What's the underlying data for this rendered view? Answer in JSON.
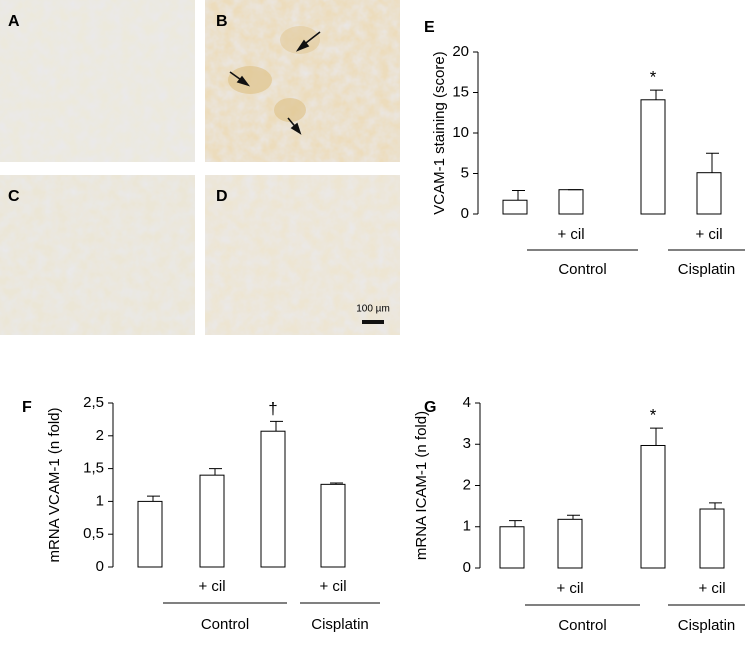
{
  "panels": [
    {
      "letter": "A"
    },
    {
      "letter": "B"
    },
    {
      "letter": "C"
    },
    {
      "letter": "D"
    }
  ],
  "scale_bar": "100 µm",
  "chart_data": [
    {
      "type": "bar",
      "panel": "E",
      "ylabel": "VCAM-1  staining  (score)",
      "categories": [
        null,
        "+ cil",
        null,
        "+ cil"
      ],
      "groups": [
        "Control",
        "Cisplatin"
      ],
      "values": [
        1.7,
        3.0,
        14.1,
        5.1
      ],
      "errors": [
        1.2,
        0,
        1.2,
        2.4
      ],
      "annotations": [
        null,
        null,
        "*",
        null
      ],
      "color": "#ffffff",
      "ylim": [
        0,
        20
      ],
      "yticks": [
        0,
        5,
        10,
        15,
        20
      ]
    },
    {
      "type": "bar",
      "panel": "F",
      "ylabel": "mRNA VCAM-1 (n fold)",
      "categories": [
        null,
        "+ cil",
        null,
        "+ cil"
      ],
      "groups": [
        "Control",
        "Cisplatin"
      ],
      "values": [
        1.0,
        1.4,
        2.07,
        1.26
      ],
      "errors": [
        0.08,
        0.1,
        0.15,
        0.02
      ],
      "annotations": [
        null,
        null,
        "†",
        null
      ],
      "color": "#ffffff",
      "ylim": [
        0,
        2.5
      ],
      "yticks": [
        0,
        {
          "value": 0.5,
          "label": "0,5"
        },
        1,
        {
          "value": 1.5,
          "label": "1,5"
        },
        2,
        {
          "value": 2.5,
          "label": "2,5"
        }
      ]
    },
    {
      "type": "bar",
      "panel": "G",
      "ylabel": "mRNA ICAM-1 (n fold)",
      "categories": [
        null,
        "+ cil",
        null,
        "+ cil"
      ],
      "groups": [
        "Control",
        "Cisplatin"
      ],
      "values": [
        1.0,
        1.18,
        2.97,
        1.43
      ],
      "errors": [
        0.15,
        0.1,
        0.42,
        0.15
      ],
      "annotations": [
        null,
        null,
        "*",
        null
      ],
      "color": "#ffffff",
      "ylim": [
        0,
        4
      ],
      "yticks": [
        0,
        1,
        2,
        3,
        4
      ]
    }
  ]
}
